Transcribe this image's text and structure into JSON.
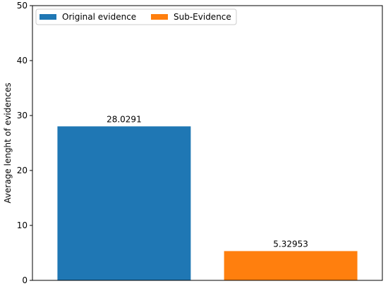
{
  "chart_data": {
    "type": "bar",
    "title": "",
    "xlabel": "",
    "ylabel": "Average lenght of evidences",
    "ylim": [
      0,
      50
    ],
    "yticks": [
      0,
      10,
      20,
      30,
      40,
      50
    ],
    "grid": false,
    "legend_position": "top-left",
    "series": [
      {
        "name": "Original evidence",
        "value": 28.0291,
        "label": "28.0291",
        "color": "#1f77b4"
      },
      {
        "name": "Sub-Evidence",
        "value": 5.32953,
        "label": "5.32953",
        "color": "#ff7f0e"
      }
    ]
  }
}
